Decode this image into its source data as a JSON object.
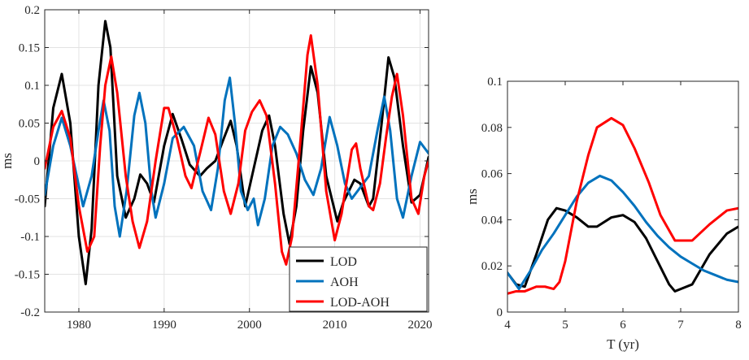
{
  "chart_data": [
    {
      "type": "line",
      "title": "",
      "xlabel": "",
      "ylabel": "ms",
      "xlim": [
        1976,
        2021
      ],
      "ylim": [
        -0.2,
        0.2
      ],
      "xticks": [
        1980,
        1990,
        2000,
        2010,
        2020
      ],
      "yticks": [
        -0.2,
        -0.15,
        -0.1,
        -0.05,
        0,
        0.05,
        0.1,
        0.15,
        0.2
      ],
      "ytick_labels": [
        "-0.2",
        "-0.15",
        "-0.1",
        "-0.05",
        "0",
        "0.05",
        "0.1",
        "0.15",
        "0.2"
      ],
      "grid": true,
      "legend_position": "bottom-right",
      "series": [
        {
          "name": "LOD",
          "color": "#000000",
          "points": [
            [
              1976,
              -0.06
            ],
            [
              1977,
              0.07
            ],
            [
              1978,
              0.115
            ],
            [
              1979,
              0.05
            ],
            [
              1980,
              -0.1
            ],
            [
              1980.8,
              -0.163
            ],
            [
              1981.5,
              -0.09
            ],
            [
              1982.3,
              0.1
            ],
            [
              1983.1,
              0.185
            ],
            [
              1983.7,
              0.15
            ],
            [
              1984.5,
              -0.02
            ],
            [
              1985.5,
              -0.075
            ],
            [
              1986.5,
              -0.05
            ],
            [
              1987.2,
              -0.018
            ],
            [
              1988,
              -0.03
            ],
            [
              1988.8,
              -0.055
            ],
            [
              1990,
              0.02
            ],
            [
              1991,
              0.062
            ],
            [
              1992,
              0.03
            ],
            [
              1993,
              -0.005
            ],
            [
              1994.2,
              -0.02
            ],
            [
              1995,
              -0.01
            ],
            [
              1996,
              0
            ],
            [
              1997,
              0.03
            ],
            [
              1997.8,
              0.053
            ],
            [
              1998.5,
              0.02
            ],
            [
              1999.5,
              -0.06
            ],
            [
              2000.3,
              -0.02
            ],
            [
              2001.5,
              0.04
            ],
            [
              2002.3,
              0.06
            ],
            [
              2003,
              0.02
            ],
            [
              2004,
              -0.07
            ],
            [
              2004.7,
              -0.11
            ],
            [
              2005.5,
              -0.06
            ],
            [
              2006.3,
              0.04
            ],
            [
              2007.2,
              0.125
            ],
            [
              2008,
              0.09
            ],
            [
              2009,
              -0.02
            ],
            [
              2010.3,
              -0.08
            ],
            [
              2011,
              -0.055
            ],
            [
              2012.3,
              -0.025
            ],
            [
              2013,
              -0.03
            ],
            [
              2014,
              -0.06
            ],
            [
              2014.5,
              -0.05
            ],
            [
              2015.5,
              0.05
            ],
            [
              2016.3,
              0.137
            ],
            [
              2017,
              0.11
            ],
            [
              2018,
              0.02
            ],
            [
              2019,
              -0.055
            ],
            [
              2020,
              -0.045
            ],
            [
              2021,
              0.005
            ]
          ]
        },
        {
          "name": "AOH",
          "color": "#0072BD",
          "points": [
            [
              1976,
              -0.045
            ],
            [
              1977,
              0.02
            ],
            [
              1978,
              0.057
            ],
            [
              1979,
              0.02
            ],
            [
              1980.5,
              -0.06
            ],
            [
              1981.5,
              -0.02
            ],
            [
              1982.3,
              0.04
            ],
            [
              1982.9,
              0.08
            ],
            [
              1983.6,
              0.04
            ],
            [
              1984.2,
              -0.06
            ],
            [
              1984.8,
              -0.1
            ],
            [
              1985.6,
              -0.04
            ],
            [
              1986.5,
              0.06
            ],
            [
              1987.1,
              0.09
            ],
            [
              1987.8,
              0.05
            ],
            [
              1988.5,
              -0.04
            ],
            [
              1989,
              -0.075
            ],
            [
              1990,
              -0.03
            ],
            [
              1991,
              0.03
            ],
            [
              1992.3,
              0.045
            ],
            [
              1993.5,
              0.02
            ],
            [
              1994.5,
              -0.04
            ],
            [
              1995.5,
              -0.065
            ],
            [
              1996.3,
              -0.01
            ],
            [
              1997.1,
              0.08
            ],
            [
              1997.7,
              0.11
            ],
            [
              1998.3,
              0.05
            ],
            [
              1999,
              -0.04
            ],
            [
              1999.8,
              -0.065
            ],
            [
              2000.5,
              -0.05
            ],
            [
              2001,
              -0.085
            ],
            [
              2001.8,
              -0.05
            ],
            [
              2002.7,
              0.02
            ],
            [
              2003.6,
              0.045
            ],
            [
              2004.5,
              0.035
            ],
            [
              2005.5,
              0.01
            ],
            [
              2006.5,
              -0.025
            ],
            [
              2007.5,
              -0.045
            ],
            [
              2008.4,
              -0.01
            ],
            [
              2009.4,
              0.058
            ],
            [
              2010.3,
              0.02
            ],
            [
              2011.2,
              -0.03
            ],
            [
              2012,
              -0.05
            ],
            [
              2013,
              -0.035
            ],
            [
              2014,
              -0.02
            ],
            [
              2015,
              0.04
            ],
            [
              2015.8,
              0.085
            ],
            [
              2016.5,
              0.04
            ],
            [
              2017.3,
              -0.05
            ],
            [
              2018,
              -0.075
            ],
            [
              2019,
              -0.02
            ],
            [
              2020,
              0.025
            ],
            [
              2021,
              0.01
            ]
          ]
        },
        {
          "name": "LOD-AOH",
          "color": "#FF0000",
          "points": [
            [
              1976,
              -0.01
            ],
            [
              1977,
              0.045
            ],
            [
              1978,
              0.066
            ],
            [
              1979,
              0.03
            ],
            [
              1980,
              -0.06
            ],
            [
              1981,
              -0.12
            ],
            [
              1981.8,
              -0.1
            ],
            [
              1982.5,
              0.02
            ],
            [
              1983.1,
              0.1
            ],
            [
              1983.8,
              0.138
            ],
            [
              1984.5,
              0.09
            ],
            [
              1985.5,
              -0.02
            ],
            [
              1986.3,
              -0.08
            ],
            [
              1987.1,
              -0.115
            ],
            [
              1988,
              -0.08
            ],
            [
              1989,
              0
            ],
            [
              1990,
              0.07
            ],
            [
              1990.5,
              0.07
            ],
            [
              1991.5,
              0.03
            ],
            [
              1992.5,
              -0.02
            ],
            [
              1993.2,
              -0.036
            ],
            [
              1994.2,
              0.01
            ],
            [
              1995.2,
              0.057
            ],
            [
              1996,
              0.035
            ],
            [
              1997,
              -0.04
            ],
            [
              1997.8,
              -0.07
            ],
            [
              1998.7,
              -0.03
            ],
            [
              1999.5,
              0.04
            ],
            [
              2000.3,
              0.065
            ],
            [
              2001.2,
              0.08
            ],
            [
              2002,
              0.06
            ],
            [
              2003,
              -0.03
            ],
            [
              2003.8,
              -0.12
            ],
            [
              2004.3,
              -0.137
            ],
            [
              2005,
              -0.1
            ],
            [
              2006,
              0.03
            ],
            [
              2006.8,
              0.14
            ],
            [
              2007.2,
              0.166
            ],
            [
              2008,
              0.1
            ],
            [
              2009,
              -0.04
            ],
            [
              2010,
              -0.105
            ],
            [
              2010.8,
              -0.07
            ],
            [
              2012,
              0.015
            ],
            [
              2012.5,
              0.023
            ],
            [
              2013,
              -0.01
            ],
            [
              2014,
              -0.06
            ],
            [
              2014.5,
              -0.065
            ],
            [
              2015.3,
              -0.03
            ],
            [
              2016,
              0.03
            ],
            [
              2016.7,
              0.085
            ],
            [
              2017.3,
              0.115
            ],
            [
              2018,
              0.06
            ],
            [
              2019,
              -0.05
            ],
            [
              2019.8,
              -0.07
            ],
            [
              2020.5,
              -0.02
            ],
            [
              2021,
              0
            ]
          ]
        }
      ]
    },
    {
      "type": "line",
      "title": "",
      "xlabel": "T (yr)",
      "ylabel": "ms",
      "xlim": [
        4,
        8
      ],
      "ylim": [
        0,
        0.1
      ],
      "xticks": [
        4,
        5,
        6,
        7,
        8
      ],
      "yticks": [
        0,
        0.02,
        0.04,
        0.06,
        0.08,
        0.1
      ],
      "ytick_labels": [
        "0",
        "0.02",
        "0.04",
        "0.06",
        "0.08",
        "0.1"
      ],
      "grid": false,
      "legend_position": "none",
      "series": [
        {
          "color": "#000000",
          "points": [
            [
              4,
              0.017
            ],
            [
              4.15,
              0.012
            ],
            [
              4.3,
              0.011
            ],
            [
              4.5,
              0.025
            ],
            [
              4.7,
              0.04
            ],
            [
              4.85,
              0.045
            ],
            [
              5,
              0.044
            ],
            [
              5.2,
              0.041
            ],
            [
              5.4,
              0.037
            ],
            [
              5.55,
              0.037
            ],
            [
              5.8,
              0.041
            ],
            [
              6,
              0.042
            ],
            [
              6.2,
              0.039
            ],
            [
              6.4,
              0.032
            ],
            [
              6.6,
              0.022
            ],
            [
              6.8,
              0.012
            ],
            [
              6.9,
              0.009
            ],
            [
              7,
              0.01
            ],
            [
              7.2,
              0.012
            ],
            [
              7.5,
              0.025
            ],
            [
              7.8,
              0.034
            ],
            [
              8,
              0.037
            ]
          ]
        },
        {
          "color": "#0072BD",
          "points": [
            [
              4,
              0.017
            ],
            [
              4.2,
              0.01
            ],
            [
              4.4,
              0.018
            ],
            [
              4.6,
              0.027
            ],
            [
              4.8,
              0.034
            ],
            [
              5,
              0.042
            ],
            [
              5.2,
              0.05
            ],
            [
              5.4,
              0.056
            ],
            [
              5.6,
              0.059
            ],
            [
              5.8,
              0.057
            ],
            [
              6,
              0.052
            ],
            [
              6.2,
              0.046
            ],
            [
              6.4,
              0.039
            ],
            [
              6.6,
              0.033
            ],
            [
              6.8,
              0.028
            ],
            [
              7,
              0.024
            ],
            [
              7.2,
              0.021
            ],
            [
              7.4,
              0.018
            ],
            [
              7.6,
              0.016
            ],
            [
              7.8,
              0.014
            ],
            [
              8,
              0.013
            ]
          ]
        },
        {
          "color": "#FF0000",
          "points": [
            [
              4,
              0.008
            ],
            [
              4.15,
              0.009
            ],
            [
              4.3,
              0.009
            ],
            [
              4.5,
              0.011
            ],
            [
              4.65,
              0.011
            ],
            [
              4.8,
              0.01
            ],
            [
              4.9,
              0.013
            ],
            [
              5,
              0.022
            ],
            [
              5.2,
              0.048
            ],
            [
              5.4,
              0.068
            ],
            [
              5.55,
              0.08
            ],
            [
              5.8,
              0.084
            ],
            [
              6,
              0.081
            ],
            [
              6.2,
              0.071
            ],
            [
              6.45,
              0.056
            ],
            [
              6.65,
              0.042
            ],
            [
              6.9,
              0.031
            ],
            [
              7.05,
              0.031
            ],
            [
              7.2,
              0.031
            ],
            [
              7.5,
              0.038
            ],
            [
              7.8,
              0.044
            ],
            [
              8,
              0.045
            ]
          ]
        }
      ]
    }
  ]
}
